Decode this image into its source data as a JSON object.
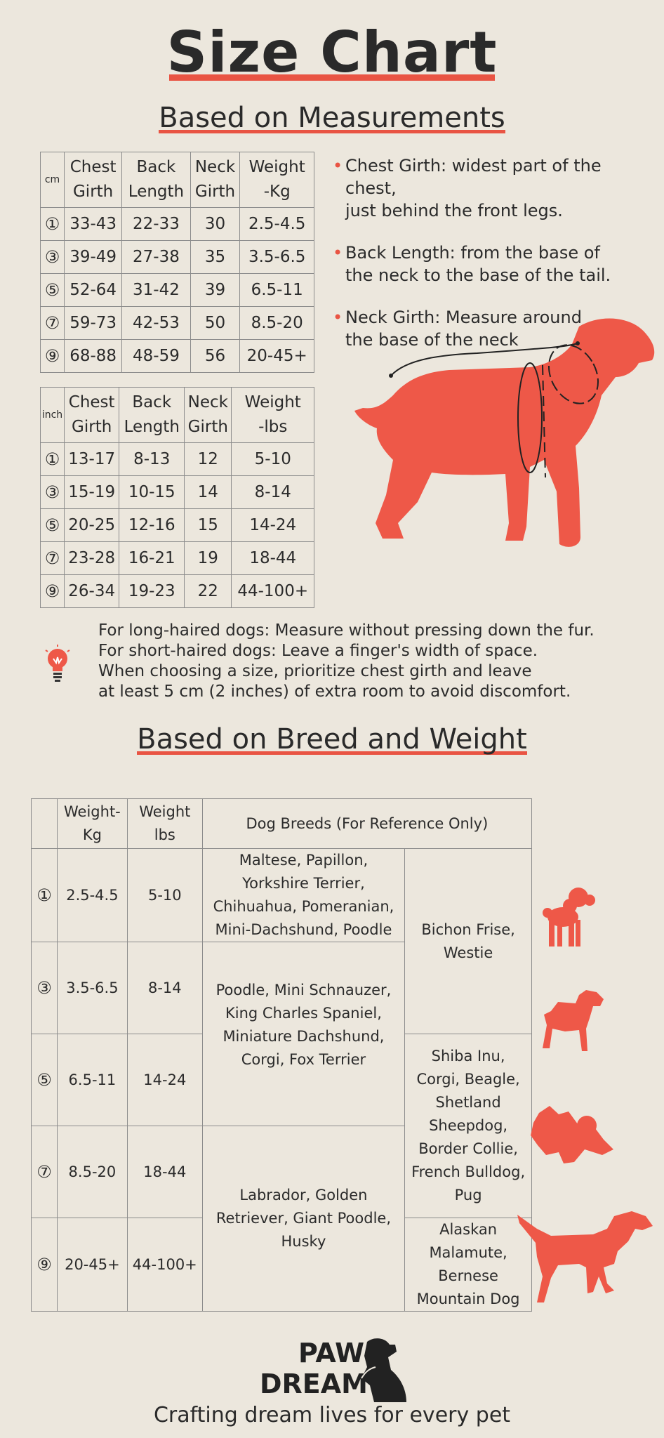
{
  "title": "Size Chart",
  "sections": {
    "measurements": "Based on Measurements",
    "breed": "Based on Breed and Weight"
  },
  "cm_table": {
    "unit": "cm",
    "headers": [
      [
        "Chest",
        "Girth"
      ],
      [
        "Back",
        "Length"
      ],
      [
        "Neck",
        "Girth"
      ],
      [
        "Weight",
        "-Kg"
      ]
    ],
    "rows": [
      {
        "size": "①",
        "chest": "33-43",
        "back": "22-33",
        "neck": "30",
        "weight": "2.5-4.5"
      },
      {
        "size": "③",
        "chest": "39-49",
        "back": "27-38",
        "neck": "35",
        "weight": "3.5-6.5"
      },
      {
        "size": "⑤",
        "chest": "52-64",
        "back": "31-42",
        "neck": "39",
        "weight": "6.5-11"
      },
      {
        "size": "⑦",
        "chest": "59-73",
        "back": "42-53",
        "neck": "50",
        "weight": "8.5-20"
      },
      {
        "size": "⑨",
        "chest": "68-88",
        "back": "48-59",
        "neck": "56",
        "weight": "20-45+"
      }
    ]
  },
  "inch_table": {
    "unit": "inch",
    "headers": [
      [
        "Chest",
        "Girth"
      ],
      [
        "Back",
        "Length"
      ],
      [
        "Neck",
        "Girth"
      ],
      [
        "Weight",
        "-lbs"
      ]
    ],
    "rows": [
      {
        "size": "①",
        "chest": "13-17",
        "back": "8-13",
        "neck": "12",
        "weight": "5-10"
      },
      {
        "size": "③",
        "chest": "15-19",
        "back": "10-15",
        "neck": "14",
        "weight": "8-14"
      },
      {
        "size": "⑤",
        "chest": "20-25",
        "back": "12-16",
        "neck": "15",
        "weight": "14-24"
      },
      {
        "size": "⑦",
        "chest": "23-28",
        "back": "16-21",
        "neck": "19",
        "weight": "18-44"
      },
      {
        "size": "⑨",
        "chest": "26-34",
        "back": "19-23",
        "neck": "22",
        "weight": "44-100+"
      }
    ]
  },
  "bullets": [
    [
      "Chest Girth: widest part of the chest,",
      "just behind the front legs."
    ],
    [
      "Back Length: from the base of",
      "the neck to the base of the tail."
    ],
    [
      "Neck Girth: Measure around",
      "the base of the neck"
    ]
  ],
  "tips": [
    "For long-haired dogs: Measure without pressing down the fur.",
    "For short-haired dogs: Leave a finger's width of space.",
    "When choosing a size, prioritize chest girth and leave",
    "at least 5 cm (2 inches) of extra room to avoid discomfort."
  ],
  "breed_table": {
    "headers": [
      "Weight-Kg",
      "Weight lbs",
      "Dog Breeds (For Reference Only)"
    ],
    "header_kg": [
      "Weight-",
      "Kg"
    ],
    "header_lbs": [
      "Weight",
      "lbs"
    ],
    "rows": [
      {
        "size": "①",
        "kg": "2.5-4.5",
        "lbs": "5-10"
      },
      {
        "size": "③",
        "kg": "3.5-6.5",
        "lbs": "8-14"
      },
      {
        "size": "⑤",
        "kg": "6.5-11",
        "lbs": "14-24"
      },
      {
        "size": "⑦",
        "kg": "8.5-20",
        "lbs": "18-44"
      },
      {
        "size": "⑨",
        "kg": "20-45+",
        "lbs": "44-100+"
      }
    ],
    "breeds": {
      "small": [
        "Maltese, Papillon,",
        "Yorkshire Terrier,",
        "Chihuahua, Pomeranian,",
        "Mini-Dachshund, Poodle"
      ],
      "small_medium": [
        "Poodle, Mini Schnauzer,",
        "King Charles Spaniel,",
        "Miniature Dachshund,",
        "Corgi, Fox Terrier"
      ],
      "large": [
        "Labrador, Golden",
        "Retriever, Giant Poodle,",
        "Husky"
      ],
      "bichon": [
        "Bichon Frise,",
        "Westie"
      ],
      "medium": [
        "Shiba Inu,",
        "Corgi, Beagle,",
        "Shetland",
        "Sheepdog,",
        "Border Collie,",
        "French Bulldog,",
        "Pug"
      ],
      "giant": [
        "Alaskan",
        "Malamute,",
        "Bernese",
        "Mountain Dog"
      ]
    }
  },
  "brand": {
    "logo_line1": "PAW",
    "logo_line2": "DREAM",
    "tagline": "Crafting dream lives for every pet"
  },
  "colors": {
    "accent": "#E95443",
    "background": "#ECE7DD"
  },
  "icons": [
    "lightbulb-icon",
    "dog-silhouette",
    "poodle-silhouette",
    "terrier-silhouette",
    "bulldog-silhouette",
    "pointer-silhouette",
    "logo-dog-icon"
  ]
}
